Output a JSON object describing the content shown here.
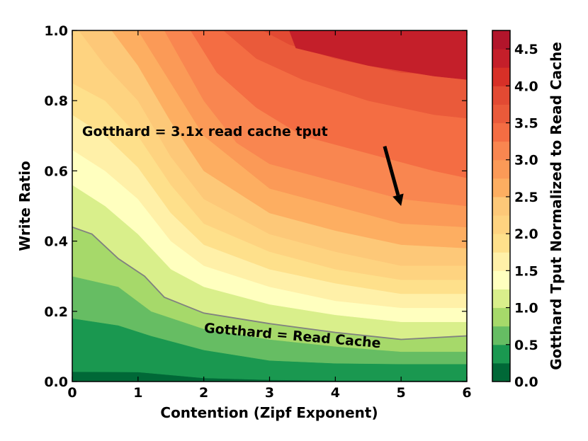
{
  "chart_data": {
    "type": "contour",
    "xlabel": "Contention (Zipf Exponent)",
    "ylabel": "Write Ratio",
    "colorbar_label": "Gotthard Tput Normalized to Read Cache",
    "xlim": [
      0,
      6
    ],
    "ylim": [
      0.0,
      1.0
    ],
    "x_ticks": [
      "0",
      "1",
      "2",
      "3",
      "4",
      "5",
      "6"
    ],
    "y_ticks": [
      "0.0",
      "0.2",
      "0.4",
      "0.6",
      "0.8",
      "1.0"
    ],
    "colorbar_ticks": [
      "0.0",
      "0.5",
      "1.0",
      "1.5",
      "2.0",
      "2.5",
      "3.0",
      "3.5",
      "4.0",
      "4.5"
    ],
    "colorbar_range": [
      0.0,
      4.75
    ],
    "levels": [
      0.0,
      0.25,
      0.5,
      0.75,
      1.0,
      1.25,
      1.5,
      1.75,
      2.0,
      2.25,
      2.5,
      2.75,
      3.0,
      3.25,
      3.5,
      3.75,
      4.0,
      4.25,
      4.5,
      4.75
    ],
    "level_colors": [
      "#006837",
      "#1a9850",
      "#66bd63",
      "#a6d96a",
      "#d9ef8b",
      "#ffffbf",
      "#fff0a8",
      "#fee08b",
      "#fed380",
      "#fdc878",
      "#fdae61",
      "#fb9a57",
      "#f98650",
      "#f46d43",
      "#ea5a3a",
      "#e24a33",
      "#d73027",
      "#c41f2a",
      "#b2152b",
      "#a50026"
    ],
    "contour_curves": [
      {
        "level": 0.25,
        "points": [
          [
            0,
            0.028
          ],
          [
            1,
            0.027
          ],
          [
            2,
            0.01
          ],
          [
            3,
            0.005
          ],
          [
            4,
            0.003
          ],
          [
            5,
            0.003
          ],
          [
            6,
            0.003
          ]
        ]
      },
      {
        "level": 0.5,
        "points": [
          [
            0,
            0.18
          ],
          [
            0.7,
            0.16
          ],
          [
            1.2,
            0.13
          ],
          [
            2,
            0.09
          ],
          [
            3,
            0.06
          ],
          [
            4,
            0.052
          ],
          [
            5,
            0.05
          ],
          [
            6,
            0.05
          ]
        ]
      },
      {
        "level": 0.75,
        "points": [
          [
            0,
            0.3
          ],
          [
            0.7,
            0.27
          ],
          [
            1.2,
            0.2
          ],
          [
            2,
            0.15
          ],
          [
            3,
            0.12
          ],
          [
            4,
            0.1
          ],
          [
            5,
            0.085
          ],
          [
            6,
            0.085
          ]
        ]
      },
      {
        "level": 1.0,
        "points": [
          [
            0,
            0.44
          ],
          [
            0.3,
            0.42
          ],
          [
            0.7,
            0.35
          ],
          [
            1.1,
            0.3
          ],
          [
            1.4,
            0.24
          ],
          [
            2,
            0.195
          ],
          [
            3,
            0.165
          ],
          [
            4,
            0.14
          ],
          [
            5,
            0.12
          ],
          [
            5.5,
            0.125
          ],
          [
            6,
            0.13
          ]
        ]
      },
      {
        "level": 1.25,
        "points": [
          [
            0,
            0.56
          ],
          [
            0.5,
            0.5
          ],
          [
            1,
            0.42
          ],
          [
            1.5,
            0.32
          ],
          [
            2,
            0.27
          ],
          [
            3,
            0.22
          ],
          [
            4,
            0.19
          ],
          [
            5,
            0.17
          ],
          [
            6,
            0.17
          ]
        ]
      },
      {
        "level": 1.5,
        "points": [
          [
            0,
            0.66
          ],
          [
            0.5,
            0.6
          ],
          [
            1,
            0.52
          ],
          [
            1.5,
            0.4
          ],
          [
            2,
            0.33
          ],
          [
            3,
            0.27
          ],
          [
            4,
            0.23
          ],
          [
            5,
            0.21
          ],
          [
            6,
            0.21
          ]
        ]
      },
      {
        "level": 1.75,
        "points": [
          [
            0,
            0.76
          ],
          [
            0.5,
            0.7
          ],
          [
            1,
            0.61
          ],
          [
            1.5,
            0.48
          ],
          [
            2,
            0.39
          ],
          [
            3,
            0.32
          ],
          [
            4,
            0.28
          ],
          [
            5,
            0.25
          ],
          [
            6,
            0.25
          ]
        ]
      },
      {
        "level": 2.0,
        "points": [
          [
            0,
            0.85
          ],
          [
            0.5,
            0.8
          ],
          [
            1,
            0.7
          ],
          [
            1.5,
            0.56
          ],
          [
            2,
            0.45
          ],
          [
            3,
            0.37
          ],
          [
            4,
            0.32
          ],
          [
            5,
            0.29
          ],
          [
            6,
            0.29
          ]
        ]
      },
      {
        "level": 2.25,
        "points": [
          [
            0.1,
            1.0
          ],
          [
            0.5,
            0.9
          ],
          [
            1,
            0.8
          ],
          [
            1.5,
            0.64
          ],
          [
            2,
            0.52
          ],
          [
            3,
            0.42
          ],
          [
            4,
            0.37
          ],
          [
            5,
            0.33
          ],
          [
            6,
            0.33
          ]
        ]
      },
      {
        "level": 2.5,
        "points": [
          [
            0.6,
            1.0
          ],
          [
            1,
            0.9
          ],
          [
            1.5,
            0.74
          ],
          [
            2,
            0.6
          ],
          [
            3,
            0.48
          ],
          [
            4,
            0.43
          ],
          [
            5,
            0.39
          ],
          [
            6,
            0.38
          ]
        ]
      },
      {
        "level": 2.75,
        "points": [
          [
            1.0,
            1.0
          ],
          [
            1.5,
            0.85
          ],
          [
            2,
            0.7
          ],
          [
            3,
            0.55
          ],
          [
            4,
            0.5
          ],
          [
            5,
            0.45
          ],
          [
            6,
            0.44
          ]
        ]
      },
      {
        "level": 3.0,
        "points": [
          [
            1.4,
            1.0
          ],
          [
            2,
            0.8
          ],
          [
            2.5,
            0.68
          ],
          [
            3,
            0.62
          ],
          [
            4,
            0.57
          ],
          [
            5,
            0.52
          ],
          [
            6,
            0.5
          ]
        ]
      },
      {
        "level": 3.25,
        "points": [
          [
            1.8,
            1.0
          ],
          [
            2.2,
            0.88
          ],
          [
            2.8,
            0.78
          ],
          [
            3.5,
            0.7
          ],
          [
            4.5,
            0.65
          ],
          [
            5.5,
            0.6
          ],
          [
            6,
            0.58
          ]
        ]
      },
      {
        "level": 3.5,
        "points": [
          [
            2.3,
            1.0
          ],
          [
            2.8,
            0.92
          ],
          [
            3.5,
            0.86
          ],
          [
            4.5,
            0.8
          ],
          [
            5.5,
            0.76
          ],
          [
            6,
            0.75
          ]
        ]
      },
      {
        "level": 3.75,
        "points": [
          [
            2.9,
            1.0
          ],
          [
            3.3,
            0.96
          ],
          [
            4,
            0.92
          ],
          [
            5,
            0.88
          ],
          [
            6,
            0.87
          ]
        ]
      },
      {
        "level": 4.0,
        "points": [
          [
            3.4,
            1.0
          ],
          [
            3.8,
            0.98
          ],
          [
            4.5,
            0.96
          ],
          [
            5.5,
            0.94
          ],
          [
            6,
            0.93
          ]
        ]
      },
      {
        "level": 4.25,
        "points": [
          [
            3.3,
            1.0
          ],
          [
            3.4,
            0.95
          ],
          [
            4.5,
            0.9
          ],
          [
            5.5,
            0.87
          ],
          [
            6,
            0.86
          ]
        ]
      }
    ],
    "boundary_line": {
      "level": 1.0,
      "color": "#808080"
    },
    "annotations": [
      {
        "text": "Gotthard = 3.1x read cache tput",
        "x": 0.15,
        "y": 0.7,
        "rotation": 0
      },
      {
        "text": "Gotthard = Read Cache",
        "x": 2.0,
        "y": 0.14,
        "rotation": 5
      }
    ],
    "arrow": {
      "from": [
        4.75,
        0.67
      ],
      "to": [
        5.0,
        0.5
      ],
      "color": "#000000"
    }
  }
}
